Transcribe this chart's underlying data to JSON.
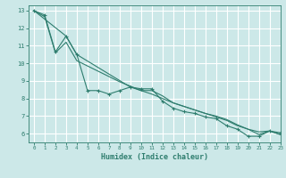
{
  "title": "",
  "xlabel": "Humidex (Indice chaleur)",
  "ylabel": "",
  "bg_color": "#cce8e8",
  "grid_color": "#ffffff",
  "line_color": "#2e7d6e",
  "xlim": [
    -0.5,
    23
  ],
  "ylim": [
    5.5,
    13.3
  ],
  "xticks": [
    0,
    1,
    2,
    3,
    4,
    5,
    6,
    7,
    8,
    9,
    10,
    11,
    12,
    13,
    14,
    15,
    16,
    17,
    18,
    19,
    20,
    21,
    22,
    23
  ],
  "yticks": [
    6,
    7,
    8,
    9,
    10,
    11,
    12,
    13
  ],
  "line1_x": [
    0,
    1,
    2,
    3,
    4,
    5,
    6,
    7,
    8,
    9,
    10,
    11,
    12,
    13,
    14,
    15,
    16,
    17,
    18,
    19,
    20,
    21,
    22,
    23
  ],
  "line1_y": [
    13.0,
    12.75,
    10.65,
    11.55,
    10.5,
    8.45,
    8.45,
    8.25,
    8.45,
    8.65,
    8.55,
    8.55,
    7.85,
    7.45,
    7.25,
    7.15,
    6.95,
    6.85,
    6.45,
    6.25,
    5.85,
    5.85,
    6.15,
    6.05
  ],
  "line2_x": [
    0,
    3,
    4,
    9,
    10,
    11,
    12,
    13,
    14,
    15,
    16,
    17,
    18,
    19,
    20,
    21,
    22,
    23
  ],
  "line2_y": [
    13.0,
    11.55,
    10.5,
    8.65,
    8.45,
    8.45,
    8.15,
    7.75,
    7.55,
    7.35,
    7.15,
    6.95,
    6.75,
    6.45,
    6.25,
    5.95,
    6.15,
    5.95
  ],
  "line3_x": [
    0,
    1,
    2,
    3,
    4,
    5,
    6,
    7,
    8,
    9,
    10,
    11,
    12,
    13,
    14,
    15,
    16,
    17,
    18,
    19,
    20,
    21,
    22,
    23
  ],
  "line3_y": [
    13.0,
    12.65,
    10.6,
    11.2,
    10.15,
    9.85,
    9.55,
    9.25,
    8.95,
    8.7,
    8.45,
    8.25,
    8.0,
    7.75,
    7.55,
    7.35,
    7.15,
    7.0,
    6.8,
    6.5,
    6.25,
    6.1,
    6.15,
    5.95
  ],
  "marker": "+",
  "markersize": 3,
  "linewidth": 0.8,
  "xlabel_fontsize": 6,
  "tick_labelsize": 5
}
